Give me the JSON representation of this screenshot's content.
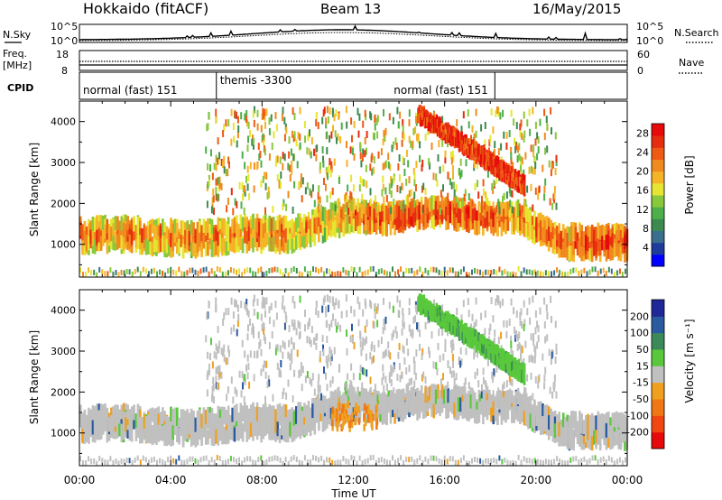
{
  "header": {
    "radar_title": "Hokkaido (fitACF)",
    "beam": "Beam 13",
    "date": "16/May/2015"
  },
  "noise_panel": {
    "left_label": "N.Sky",
    "right_label": "N.Search",
    "ticks": [
      "10^5",
      "10^0"
    ]
  },
  "freq_panel": {
    "left_label_1": "Freq.",
    "left_label_2": "[MHz]",
    "left_ticks": [
      "18",
      "8"
    ],
    "right_label": "Nave",
    "right_ticks": [
      "60",
      "0"
    ]
  },
  "cpid_panel": {
    "label": "CPID",
    "segments": [
      {
        "name": "normal (fast) 151",
        "start_hour": 0,
        "end_hour": 6
      },
      {
        "name": "themis -3300",
        "start_hour": 6,
        "end_hour": 18.2
      },
      {
        "name": "normal (fast) 151",
        "start_hour": 18.2,
        "end_hour": 24
      }
    ]
  },
  "chart_data": [
    {
      "type": "heatmap",
      "ylabel": "Slant Range [km]",
      "yticks": [
        1000,
        2000,
        3000,
        4000
      ],
      "ylim": [
        200,
        4500
      ],
      "xlim": [
        0,
        24
      ],
      "colorbar": {
        "label": "Power [dB]",
        "ticks": [
          4,
          8,
          12,
          16,
          20,
          24,
          28
        ],
        "range": [
          0,
          30
        ],
        "colors": [
          "#0000ff",
          "#1e3c9c",
          "#3a6e8f",
          "#3c8a50",
          "#4caf4a",
          "#88c83c",
          "#e6e632",
          "#f5b428",
          "#f08a1e",
          "#ee5a14",
          "#e62d0f",
          "#e60a0a"
        ]
      }
    },
    {
      "type": "heatmap",
      "ylabel": "Slant Range [km]",
      "yticks": [
        1000,
        2000,
        3000,
        4000
      ],
      "ylim": [
        200,
        4500
      ],
      "xlim": [
        0,
        24
      ],
      "xticks": [
        "00:00",
        "04:00",
        "08:00",
        "12:00",
        "16:00",
        "20:00",
        "00:00"
      ],
      "xlabel": "Time UT",
      "colorbar": {
        "label": "Velocity [m s⁻¹]",
        "ticks": [
          "200",
          "100",
          "50",
          "15",
          "-15",
          "-50",
          "-100",
          "-200"
        ],
        "colors": [
          "#1e2896",
          "#2a5aa0",
          "#3c8a5a",
          "#5ac83c",
          "#c0c0c0",
          "#f0a01e",
          "#f07814",
          "#f0460f",
          "#e60a0a"
        ]
      }
    }
  ]
}
